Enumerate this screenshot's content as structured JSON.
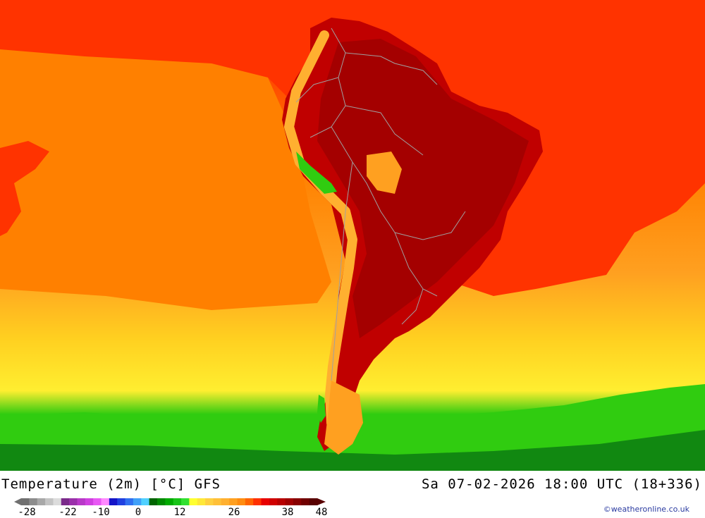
{
  "map": {
    "region": "South America",
    "title": "Temperature (2m) [°C] GFS",
    "valid_time": "Sa 07-02-2026 18:00 UTC (18+336)",
    "credit": "©weatheronline.co.uk",
    "colors": {
      "ocean_north": "#ff1a00",
      "ocean_tropic_east": "#ff3300",
      "ocean_mid": "#ff8000",
      "ocean_subtrop": "#ffa020",
      "ocean_south": "#ffd020",
      "ocean_yellow": "#ffee30",
      "ocean_green": "#30cc10",
      "ocean_darkgreen": "#118811",
      "land_hot": "#c00000",
      "land_hotter": "#a40000",
      "andes": "#ffb030",
      "border": "#a0a0a0"
    }
  },
  "legend": {
    "colors": [
      "#707070",
      "#8c8c8c",
      "#a8a8a8",
      "#c4c4c4",
      "#dcdcdc",
      "#7a2a8a",
      "#9a30aa",
      "#b838c8",
      "#d040e0",
      "#e858f4",
      "#ff88ff",
      "#1414c8",
      "#2040e0",
      "#3070f0",
      "#40a0f8",
      "#50d0ff",
      "#006400",
      "#008a00",
      "#00aa00",
      "#18c418",
      "#30e030",
      "#ffff30",
      "#ffe838",
      "#ffd040",
      "#ffc038",
      "#ffb030",
      "#ffa020",
      "#ff8c10",
      "#ff6400",
      "#ff3000",
      "#e80000",
      "#d00000",
      "#b80000",
      "#a00000",
      "#880000",
      "#700000",
      "#580000"
    ],
    "ticks": [
      "-28",
      "-22",
      "-10",
      "0",
      "12",
      "26",
      "38",
      "48"
    ]
  }
}
